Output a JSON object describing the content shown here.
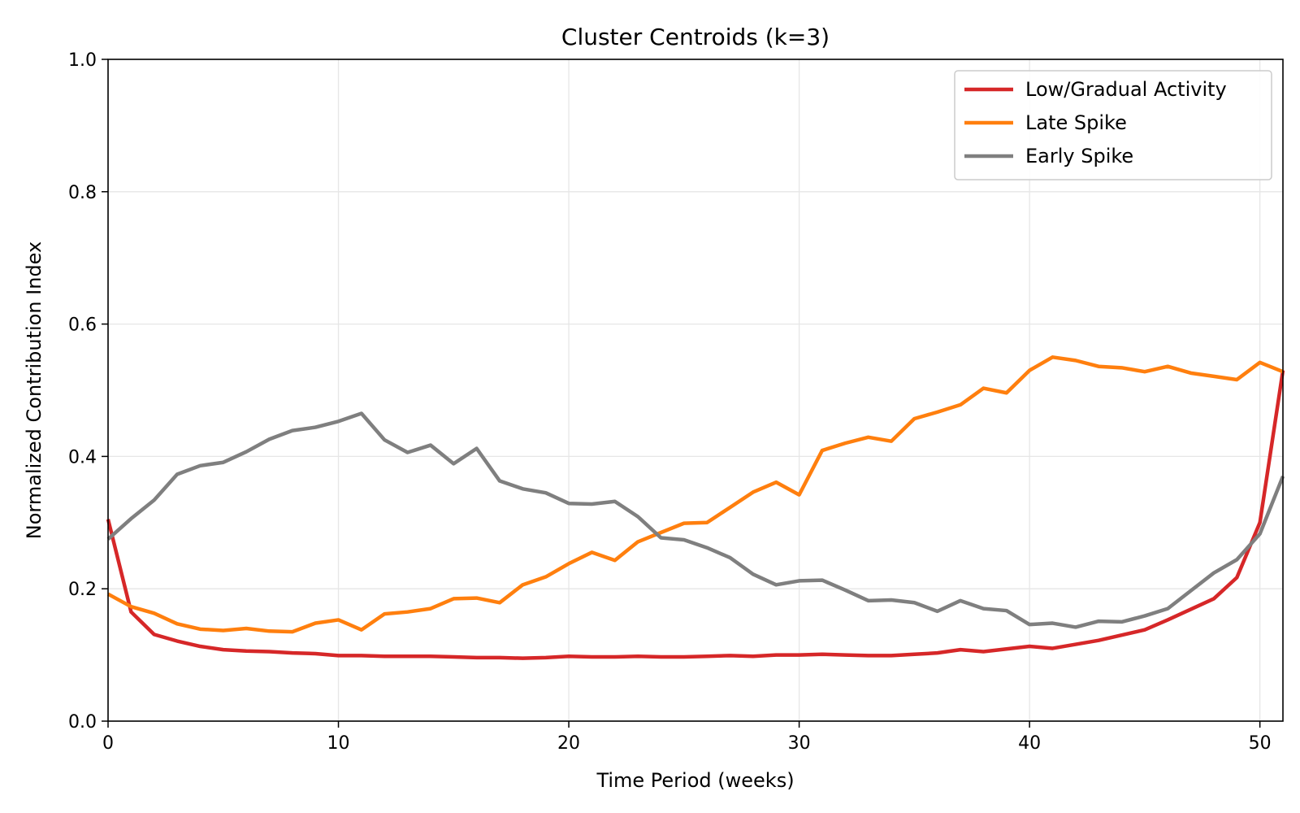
{
  "chart_data": {
    "type": "line",
    "title": "Cluster Centroids (k=3)",
    "xlabel": "Time Period (weeks)",
    "ylabel": "Normalized Contribution Index",
    "xlim": [
      0,
      51
    ],
    "ylim": [
      0,
      1.0
    ],
    "xticks": [
      0,
      10,
      20,
      30,
      40,
      50
    ],
    "yticks": [
      0.0,
      0.2,
      0.4,
      0.6,
      0.8,
      1.0
    ],
    "xtick_labels": [
      "0",
      "10",
      "20",
      "30",
      "40",
      "50"
    ],
    "ytick_labels": [
      "0.0",
      "0.2",
      "0.4",
      "0.6",
      "0.8",
      "1.0"
    ],
    "grid": true,
    "legend_position": "top-right",
    "x": [
      0,
      1,
      2,
      3,
      4,
      5,
      6,
      7,
      8,
      9,
      10,
      11,
      12,
      13,
      14,
      15,
      16,
      17,
      18,
      19,
      20,
      21,
      22,
      23,
      24,
      25,
      26,
      27,
      28,
      29,
      30,
      31,
      32,
      33,
      34,
      35,
      36,
      37,
      38,
      39,
      40,
      41,
      42,
      43,
      44,
      45,
      46,
      47,
      48,
      49,
      50,
      51
    ],
    "series": [
      {
        "name": "Low/Gradual Activity",
        "color": "#d62728",
        "values": [
          0.305,
          0.165,
          0.131,
          0.121,
          0.113,
          0.108,
          0.106,
          0.105,
          0.103,
          0.102,
          0.099,
          0.099,
          0.098,
          0.098,
          0.098,
          0.097,
          0.096,
          0.096,
          0.095,
          0.096,
          0.098,
          0.097,
          0.097,
          0.098,
          0.097,
          0.097,
          0.098,
          0.099,
          0.098,
          0.1,
          0.1,
          0.101,
          0.1,
          0.099,
          0.099,
          0.101,
          0.103,
          0.108,
          0.105,
          0.109,
          0.113,
          0.11,
          0.116,
          0.122,
          0.13,
          0.138,
          0.153,
          0.169,
          0.185,
          0.217,
          0.3,
          0.53
        ]
      },
      {
        "name": "Late Spike",
        "color": "#ff7f0e",
        "values": [
          0.192,
          0.173,
          0.163,
          0.147,
          0.139,
          0.137,
          0.14,
          0.136,
          0.135,
          0.148,
          0.153,
          0.138,
          0.162,
          0.165,
          0.17,
          0.185,
          0.186,
          0.179,
          0.206,
          0.218,
          0.238,
          0.255,
          0.243,
          0.271,
          0.285,
          0.299,
          0.3,
          0.323,
          0.346,
          0.361,
          0.342,
          0.409,
          0.42,
          0.429,
          0.423,
          0.457,
          0.467,
          0.478,
          0.503,
          0.496,
          0.53,
          0.55,
          0.545,
          0.536,
          0.534,
          0.528,
          0.536,
          0.526,
          0.521,
          0.516,
          0.542,
          0.528
        ]
      },
      {
        "name": "Early Spike",
        "color": "#7f7f7f",
        "values": [
          0.275,
          0.306,
          0.334,
          0.373,
          0.386,
          0.391,
          0.407,
          0.426,
          0.439,
          0.444,
          0.453,
          0.465,
          0.425,
          0.406,
          0.417,
          0.389,
          0.412,
          0.363,
          0.351,
          0.345,
          0.329,
          0.328,
          0.332,
          0.309,
          0.277,
          0.274,
          0.262,
          0.247,
          0.222,
          0.206,
          0.212,
          0.213,
          0.198,
          0.182,
          0.183,
          0.179,
          0.166,
          0.182,
          0.17,
          0.167,
          0.146,
          0.148,
          0.142,
          0.151,
          0.15,
          0.159,
          0.17,
          0.197,
          0.224,
          0.244,
          0.283,
          0.37
        ]
      }
    ]
  }
}
